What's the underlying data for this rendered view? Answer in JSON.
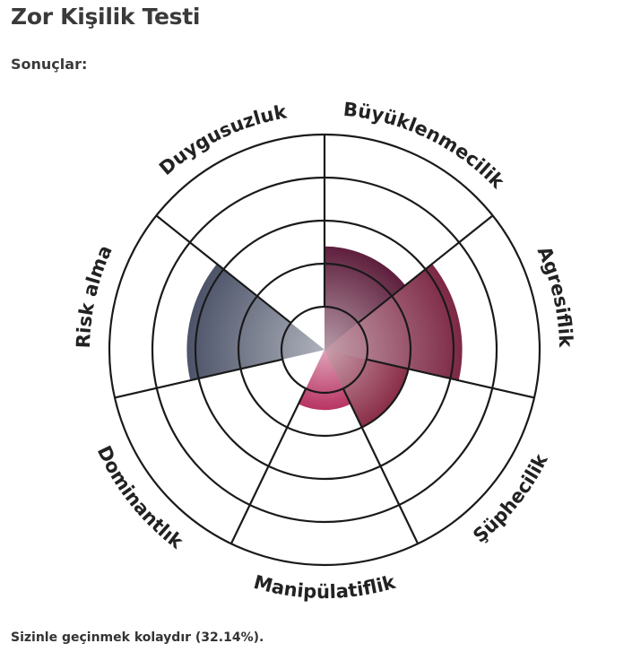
{
  "page": {
    "title": "Zor Kişilik Testi",
    "results_label": "Sonuçlar:",
    "result_text": "Sizinle geçinmek kolaydır (32.14%)."
  },
  "chart_data": {
    "type": "polar-area",
    "rings": 5,
    "scale_max": 5,
    "categories": [
      "Büyüklenmecilik",
      "Agresiflik",
      "Şüphecilik",
      "Manipülatiflik",
      "Dominantlık",
      "Risk alma",
      "Duygusuzluk"
    ],
    "values": [
      2.4,
      3.2,
      2.0,
      1.4,
      0,
      3.2,
      0
    ],
    "colors": [
      "#5e1f3d",
      "#7d2845",
      "#8a2d48",
      "#b83463",
      "#ffffff",
      "#4d5469",
      "#ffffff"
    ],
    "center_color": "#4a3a4c",
    "grid": true
  }
}
